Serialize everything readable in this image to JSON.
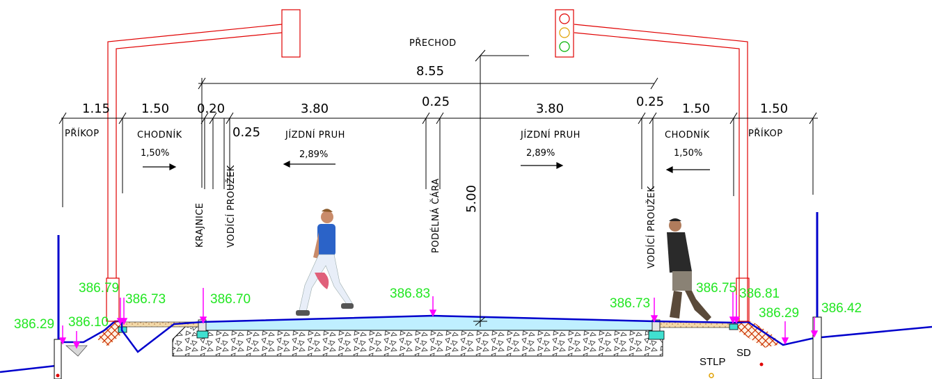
{
  "title": "PŘECHOD",
  "total_width": "8.55",
  "dimensions": [
    "1.15",
    "1.50",
    "0.20",
    "3.80",
    "0.25",
    "3.80",
    "0.25",
    "1.50",
    "1.50"
  ],
  "dim_025_left": "0.25",
  "clearance_height": "5.00",
  "zones": {
    "prikop_left": "PŘÍKOP",
    "chodnik_left": "CHODNÍK",
    "pruh_left": "JÍZDNÍ PRUH",
    "pruh_right": "JÍZDNÍ PRUH",
    "chodnik_right": "CHODNÍK",
    "prikop_right": "PŘÍKOP"
  },
  "slopes": {
    "chodnik_left": "1,50%",
    "pruh_left": "2,89%",
    "pruh_right": "2,89%",
    "chodnik_right": "1,50%"
  },
  "vertical_labels": {
    "krajnice": "KRAJNICE",
    "vodici_left": "VODÍCÍ PROUŽEK",
    "podelna": "PODÉLNÁ ČÁRA",
    "vodici_right": "VODÍCÍ PROUŽEK"
  },
  "elevations": [
    "386.29",
    "386.10",
    "386.79",
    "386.73",
    "386.70",
    "386.83",
    "386.73",
    "386.75",
    "386.81",
    "386.29",
    "386.42"
  ],
  "legend": {
    "stlp": "STLP",
    "sd": "SD"
  },
  "colors": {
    "elevation_text": "#22e622",
    "marker": "#ff00ff",
    "terrain": "#0000cc",
    "gantry": "#ff0000",
    "pavement": "#bfefff",
    "curb": "#40e0d0",
    "hatch": "#cc3300"
  }
}
